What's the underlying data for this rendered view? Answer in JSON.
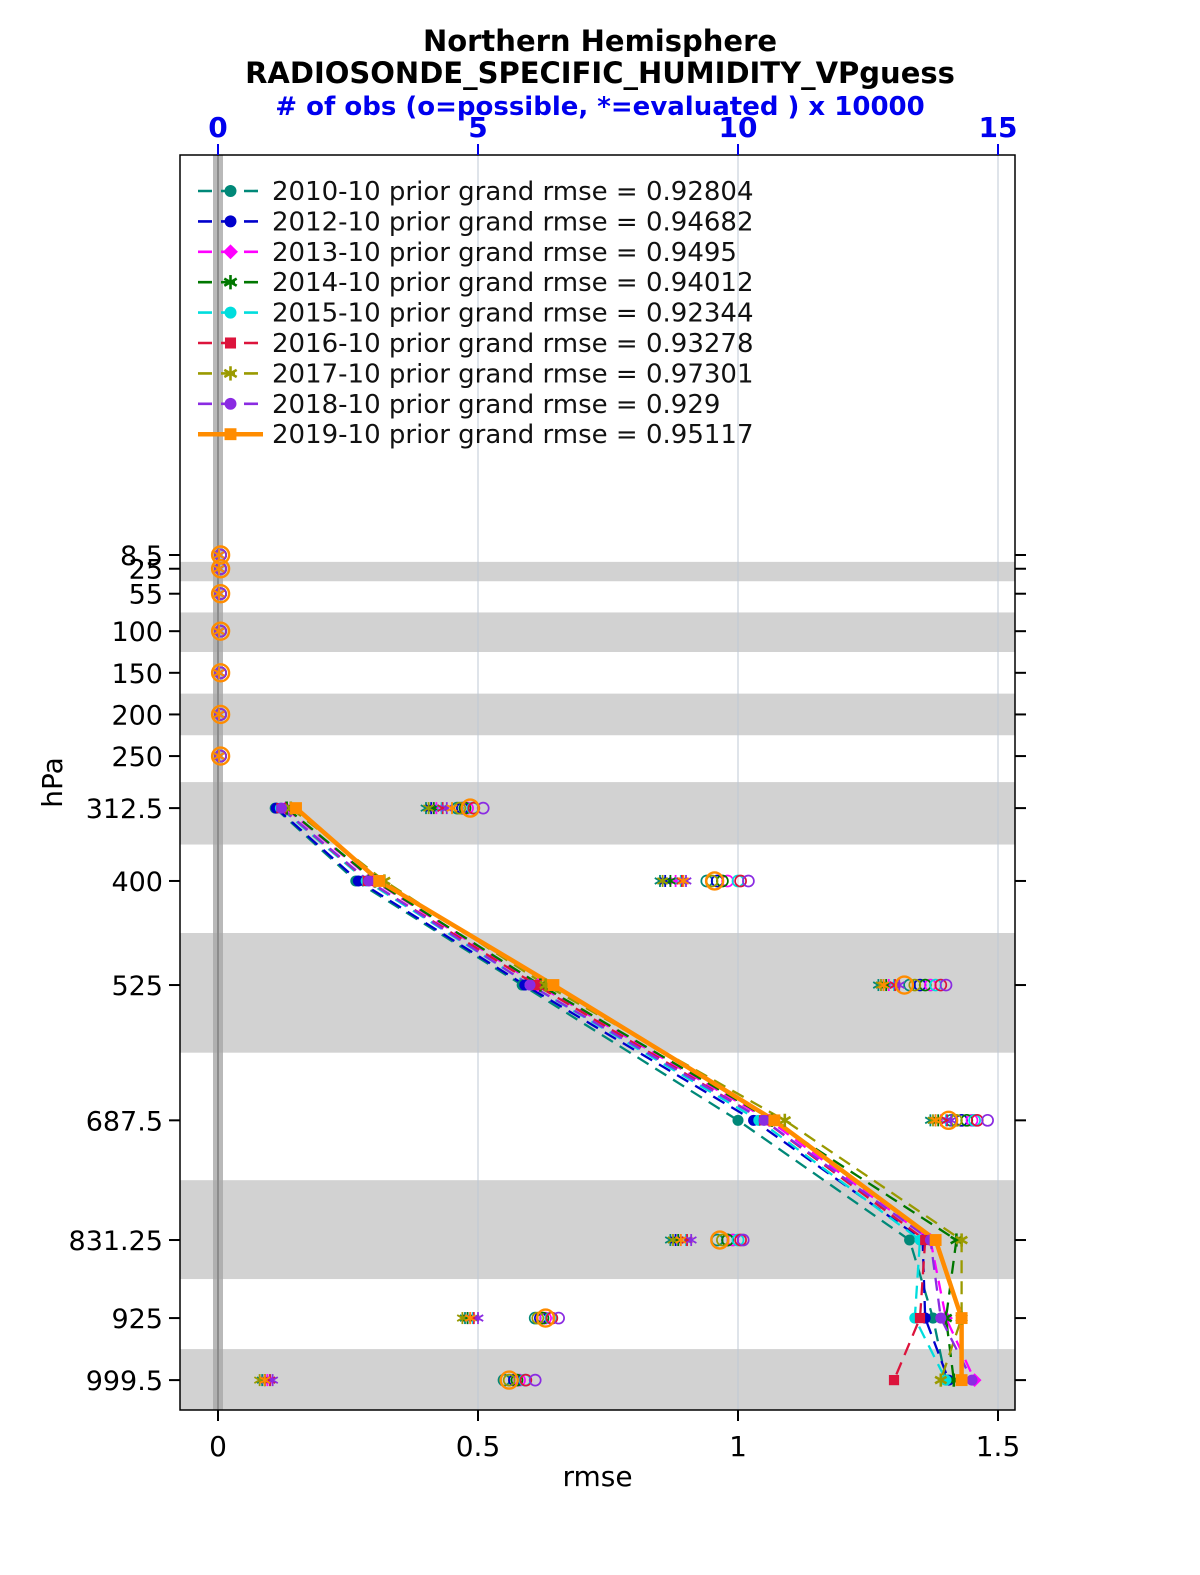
{
  "title": {
    "line1": "Northern Hemisphere",
    "line2": "RADIOSONDE_SPECIFIC_HUMIDITY_VPguess",
    "obs_axis_label": "# of obs (o=possible, *=evaluated ) x 10000"
  },
  "axes": {
    "x_label": "rmse",
    "y_label": "hPa",
    "x_ticks": [
      "0",
      "0.5",
      "1",
      "1.5"
    ],
    "x_tick_values": [
      0,
      0.5,
      1,
      1.5
    ],
    "top_ticks": [
      "0",
      "5",
      "10",
      "15"
    ],
    "top_tick_values": [
      0,
      5,
      10,
      15
    ],
    "y_tick_labels": [
      "8.5",
      "25",
      "55",
      "100",
      "150",
      "200",
      "250",
      "312.5",
      "400",
      "525",
      "687.5",
      "831.25",
      "925",
      "999.5"
    ],
    "y_tick_values": [
      8.5,
      25,
      55,
      100,
      150,
      200,
      250,
      312.5,
      400,
      525,
      687.5,
      831.25,
      925,
      999.5
    ]
  },
  "colors": {
    "axis_blue": "#0000EE",
    "band_gray": "#d2d2d2",
    "zero_bar": "#a8a8a8",
    "zero_line": "#8c8c8c",
    "grid": "#bfc8d4",
    "axis_black": "#000000"
  },
  "chart_data": {
    "type": "line",
    "title": "Northern Hemisphere",
    "subtitle": "RADIOSONDE_SPECIFIC_HUMIDITY_VPguess",
    "xlabel": "rmse",
    "ylabel": "hPa",
    "top_axis_label": "# of obs (o=possible, *=evaluated ) x 10000",
    "xlim": [
      -0.073,
      1.533
    ],
    "obs_axis_lim": [
      -0.73,
      15.33
    ],
    "obs_units_note": "x 10000",
    "legend_position": "top-left-inside",
    "grid": "vertical-light",
    "pressure_levels_all": [
      8.5,
      25,
      55,
      100,
      150,
      200,
      250,
      312.5,
      400,
      525,
      687.5,
      831.25,
      925,
      999.5
    ],
    "rmse_levels": [
      312.5,
      400,
      525,
      687.5,
      831.25,
      925,
      999.5
    ],
    "shaded_levels": [
      25,
      100,
      200,
      312.5,
      525,
      831.25,
      999.5
    ],
    "series": [
      {
        "id": "2010-10",
        "label": "2010-10 prior grand rmse = 0.92804",
        "grand_rmse": 0.92804,
        "color": "#008878",
        "line": "dashed",
        "marker": "circle",
        "rmse": [
          0.11,
          0.265,
          0.585,
          1.0,
          1.33,
          1.375,
          1.4
        ],
        "possible": [
          0.05,
          0.05,
          0.05,
          0.05,
          0.05,
          0.05,
          0.05,
          4.6,
          9.4,
          13.3,
          14.1,
          9.6,
          6.1,
          5.5
        ],
        "evaluated": [
          0.02,
          0.02,
          0.02,
          0.02,
          0.02,
          0.02,
          0.02,
          4.0,
          8.5,
          12.7,
          13.7,
          8.7,
          4.75,
          0.85
        ]
      },
      {
        "id": "2012-10",
        "label": "2012-10 prior grand rmse = 0.94682",
        "grand_rmse": 0.94682,
        "color": "#0000CC",
        "line": "dashed",
        "marker": "circle",
        "rmse": [
          0.112,
          0.27,
          0.59,
          1.03,
          1.355,
          1.36,
          1.405
        ],
        "possible": [
          0.05,
          0.05,
          0.05,
          0.05,
          0.05,
          0.05,
          0.05,
          4.7,
          9.6,
          13.5,
          14.3,
          9.8,
          6.2,
          5.7
        ],
        "evaluated": [
          0.02,
          0.02,
          0.02,
          0.02,
          0.02,
          0.02,
          0.02,
          4.1,
          8.6,
          12.8,
          13.8,
          8.8,
          4.8,
          0.9
        ]
      },
      {
        "id": "2013-10",
        "label": "2013-10 prior grand rmse = 0.9495",
        "grand_rmse": 0.9495,
        "color": "#FF00FF",
        "line": "dashed",
        "marker": "diamond",
        "rmse": [
          0.13,
          0.3,
          0.615,
          1.06,
          1.37,
          1.4,
          1.455
        ],
        "possible": [
          0.05,
          0.05,
          0.05,
          0.05,
          0.05,
          0.05,
          0.05,
          4.8,
          9.8,
          13.7,
          14.5,
          9.9,
          6.3,
          5.8
        ],
        "evaluated": [
          0.02,
          0.02,
          0.02,
          0.02,
          0.02,
          0.02,
          0.02,
          4.2,
          8.8,
          12.9,
          13.9,
          8.9,
          4.85,
          0.95
        ]
      },
      {
        "id": "2014-10",
        "label": "2014-10 prior grand rmse = 0.94012",
        "grand_rmse": 0.94012,
        "color": "#007700",
        "line": "dashed",
        "marker": "star",
        "rmse": [
          0.132,
          0.302,
          0.62,
          1.065,
          1.42,
          1.4,
          1.415
        ],
        "possible": [
          0.05,
          0.05,
          0.05,
          0.05,
          0.05,
          0.05,
          0.05,
          4.75,
          9.7,
          13.6,
          14.4,
          9.8,
          6.25,
          5.75
        ],
        "evaluated": [
          0.02,
          0.02,
          0.02,
          0.02,
          0.02,
          0.02,
          0.02,
          4.15,
          8.7,
          12.85,
          13.85,
          8.85,
          4.8,
          0.9
        ]
      },
      {
        "id": "2015-10",
        "label": "2015-10 prior grand rmse = 0.92344",
        "grand_rmse": 0.92344,
        "color": "#00DDDD",
        "line": "dashed",
        "marker": "circle",
        "rmse": [
          0.12,
          0.285,
          0.6,
          1.04,
          1.35,
          1.34,
          1.4
        ],
        "possible": [
          0.05,
          0.05,
          0.05,
          0.05,
          0.05,
          0.05,
          0.05,
          4.9,
          10.0,
          13.8,
          14.55,
          10.0,
          6.4,
          5.9
        ],
        "evaluated": [
          0.02,
          0.02,
          0.02,
          0.02,
          0.02,
          0.02,
          0.02,
          4.3,
          8.9,
          13.0,
          14.0,
          9.0,
          4.9,
          1.0
        ]
      },
      {
        "id": "2016-10",
        "label": "2016-10 prior grand rmse = 0.93278",
        "grand_rmse": 0.93278,
        "color": "#DC143C",
        "line": "dashed",
        "marker": "square",
        "rmse": [
          0.122,
          0.288,
          0.612,
          1.05,
          1.36,
          1.35,
          1.3
        ],
        "possible": [
          0.05,
          0.05,
          0.05,
          0.05,
          0.05,
          0.05,
          0.05,
          4.92,
          10.05,
          13.9,
          14.6,
          10.05,
          6.42,
          5.92
        ],
        "evaluated": [
          0.02,
          0.02,
          0.02,
          0.02,
          0.02,
          0.02,
          0.02,
          4.32,
          8.92,
          13.02,
          14.02,
          9.02,
          4.92,
          1.0
        ]
      },
      {
        "id": "2017-10",
        "label": "2017-10 prior grand rmse = 0.97301",
        "grand_rmse": 0.97301,
        "color": "#9A9A00",
        "line": "dashed",
        "marker": "star",
        "rmse": [
          0.14,
          0.32,
          0.63,
          1.09,
          1.43,
          1.43,
          1.39
        ],
        "possible": [
          0.05,
          0.05,
          0.05,
          0.05,
          0.05,
          0.05,
          0.05,
          4.65,
          9.5,
          13.4,
          14.2,
          9.7,
          6.15,
          5.6
        ],
        "evaluated": [
          0.02,
          0.02,
          0.02,
          0.02,
          0.02,
          0.02,
          0.02,
          4.05,
          8.55,
          12.75,
          13.75,
          8.75,
          4.7,
          0.8
        ]
      },
      {
        "id": "2018-10",
        "label": "2018-10 prior grand rmse = 0.929",
        "grand_rmse": 0.929,
        "color": "#8A2BE2",
        "line": "dashed",
        "marker": "circle",
        "rmse": [
          0.122,
          0.29,
          0.6,
          1.05,
          1.37,
          1.39,
          1.45
        ],
        "possible": [
          0.05,
          0.05,
          0.05,
          0.05,
          0.05,
          0.05,
          0.05,
          5.1,
          10.2,
          14.0,
          14.8,
          10.1,
          6.55,
          6.1
        ],
        "evaluated": [
          0.02,
          0.02,
          0.02,
          0.02,
          0.02,
          0.02,
          0.02,
          4.4,
          9.0,
          13.1,
          14.1,
          9.1,
          5.0,
          1.05
        ]
      },
      {
        "id": "2019-10",
        "label": "2019-10 prior grand rmse = 0.95117",
        "grand_rmse": 0.95117,
        "color": "#FF8C00",
        "line": "solid",
        "marker": "square",
        "rmse": [
          0.15,
          0.31,
          0.645,
          1.07,
          1.38,
          1.43,
          1.43
        ],
        "possible": [
          0.05,
          0.05,
          0.05,
          0.05,
          0.05,
          0.05,
          0.05,
          4.85,
          9.55,
          13.2,
          14.05,
          9.65,
          6.3,
          5.6
        ],
        "evaluated": [
          0.02,
          0.02,
          0.02,
          0.02,
          0.02,
          0.02,
          0.02,
          4.5,
          8.95,
          12.8,
          13.8,
          8.9,
          4.85,
          0.9
        ]
      }
    ]
  }
}
